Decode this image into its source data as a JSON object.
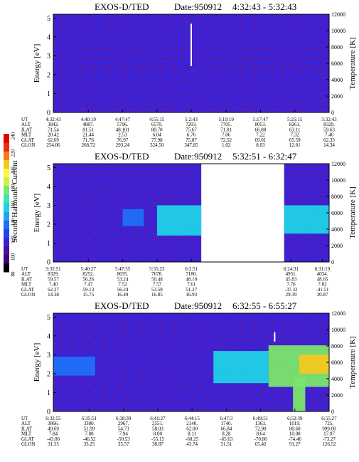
{
  "colorbar": {
    "label": "Second Harmonic Current",
    "ticks": [
      "80",
      "100",
      "120",
      "140",
      "160",
      "180",
      "200",
      "220",
      "240"
    ],
    "colors": [
      "#000000",
      "#40007a",
      "#4b0f9a",
      "#3a22d8",
      "#1e44f2",
      "#1e70f7",
      "#23a0f8",
      "#1fd2e6",
      "#33e8b8",
      "#7ae66c",
      "#ccf040",
      "#f8f83a",
      "#f4c820",
      "#f47a10",
      "#ee2a0a",
      "#e00000"
    ]
  },
  "panels": [
    {
      "title": "EXOS-D/TED",
      "date_label": "Date:950912",
      "time_range": "4:32:43 - 5:32:43",
      "ylabel": "Energy [eV]",
      "y2label": "Temperature [K]",
      "yticks": [
        "0",
        "1",
        "2",
        "3",
        "4",
        "5"
      ],
      "y2ticks": [
        "0",
        "2000",
        "4000",
        "6000",
        "8000",
        "10000",
        "12000"
      ],
      "row_labels": [
        "UT",
        "ALT",
        "ILAT",
        "MLT",
        "GLAT",
        "GLON"
      ],
      "columns": [
        [
          "4:32:43",
          "3842.",
          "71.54",
          "20.42",
          "62.69",
          "254.06"
        ],
        [
          "4:40:19",
          "4887.",
          "81.51",
          "21.44",
          "71.76",
          "268.72"
        ],
        [
          "4:47:47",
          "5796.",
          "48.101",
          "2.53",
          "76.97",
          "293.24"
        ],
        [
          "4:55:15",
          "6570.",
          "80.70",
          "6.04",
          "77.98",
          "324.50"
        ],
        [
          "5:2:43",
          "7203.",
          "75.67",
          "6.76",
          "75.87",
          "347.85"
        ],
        [
          "5:10:19",
          "7705.",
          "71.01",
          "7.06",
          "72.52",
          "1.02"
        ],
        [
          "5:17:47",
          "8053.",
          "66.88",
          "7.22",
          "69.01",
          "8.03"
        ],
        [
          "5:25:15",
          "8261.",
          "63.11",
          "7.32",
          "65.59",
          "12.01"
        ],
        [
          "5:32:43",
          "8329.",
          "59.63",
          "7.40",
          "62.33",
          "14.34"
        ]
      ]
    },
    {
      "title": "EXOS-D/TED",
      "date_label": "Date:950912",
      "time_range": "5:32:51 - 6:32:47",
      "ylabel": "Energy [eV]",
      "y2label": "Temperature [K]",
      "yticks": [
        "0",
        "1",
        "2",
        "3",
        "4",
        "5"
      ],
      "y2ticks": [
        "0",
        "2000",
        "4000",
        "6000",
        "8000",
        "10000",
        "12000"
      ],
      "row_labels": [
        "UT",
        "ALT",
        "ILAT",
        "MLT",
        "GLAT",
        "GLON"
      ],
      "columns": [
        [
          "5:32:51",
          "8329.",
          "59.57",
          "7.40",
          "62.27",
          "14.38"
        ],
        [
          "5:40:27",
          "8252.",
          "56.26",
          "7.47",
          "59.13",
          "15.75"
        ],
        [
          "5:47:55",
          "8035.",
          "53.24",
          "7.52",
          "56.24",
          "16.49"
        ],
        [
          "5:55:23",
          "7678.",
          "50.48",
          "7.57",
          "53.58",
          "16.85"
        ],
        [
          "6:2:51",
          "7180.",
          "48.10",
          "7.61",
          "51.27",
          "16.93"
        ],
        [
          "6:24:31",
          "4951.",
          "45.83",
          "7.76",
          "-37.32",
          "29.39"
        ],
        [
          "6:31:19",
          "4034.",
          "48.65",
          "7.82",
          "-41.51",
          "30.87"
        ]
      ]
    },
    {
      "title": "EXOS-D/TED",
      "date_label": "Date:950912",
      "time_range": "6:32:55 - 6:55:27",
      "ylabel": "Energy [eV]",
      "y2label": "Temperature [K]",
      "yticks": [
        "0",
        "1",
        "2",
        "3",
        "4",
        "5"
      ],
      "y2ticks": [
        "0",
        "2000",
        "4000",
        "6000",
        "8000",
        "10000",
        "12000"
      ],
      "row_labels": [
        "UT",
        "ALT",
        "ILAT",
        "MLT",
        "GLAT",
        "GLON"
      ],
      "columns": [
        [
          "6:32:55",
          "3866.",
          "49.69",
          "7.84",
          "-43.06",
          "31.55"
        ],
        [
          "6:35:51",
          "3380.",
          "51.99",
          "7.88",
          "-46.52",
          "33.25"
        ],
        [
          "6:38:39",
          "2967.",
          "54.73",
          "7.94",
          "-50.53",
          "35.57"
        ],
        [
          "6:41:27",
          "2551.",
          "58.03",
          "8.00",
          "-55.15",
          "38.87"
        ],
        [
          "6:44:15",
          "2140.",
          "62.00",
          "8.11",
          "-60.25",
          "43.74"
        ],
        [
          "6:47:3",
          "1740.",
          "66.84",
          "8.28",
          "-65.63",
          "51.51"
        ],
        [
          "6:49:51",
          "1363.",
          "72.90",
          "8.64",
          "-70.86",
          "65.42"
        ],
        [
          "6:52:39",
          "1019.",
          "80.60",
          "10.08",
          "-74.46",
          "91.27"
        ],
        [
          "6:55:27",
          "725.",
          "999.00",
          "17.07",
          "-73.27",
          "126.52"
        ]
      ]
    }
  ],
  "chart_data": [
    {
      "type": "heatmap",
      "title": "EXOS-D/TED  Date:950912  4:32:43 - 5:32:43",
      "xlabel": "UT",
      "ylabel": "Energy [eV]",
      "y2label": "Temperature [K]",
      "ylim": [
        0,
        5.2
      ],
      "y2lim": [
        0,
        12000
      ],
      "x_ticks": [
        "4:32:43",
        "4:40:19",
        "4:47:47",
        "4:55:15",
        "5:2:43",
        "5:10:19",
        "5:17:47",
        "5:25:15",
        "5:32:43"
      ],
      "background_level": 112,
      "features": [
        {
          "kind": "data_gap_line",
          "time": "5:2:43",
          "energy_range": [
            2.45,
            4.7
          ]
        }
      ]
    },
    {
      "type": "heatmap",
      "title": "EXOS-D/TED  Date:950912  5:32:51 - 6:32:47",
      "xlabel": "UT",
      "ylabel": "Energy [eV]",
      "y2label": "Temperature [K]",
      "ylim": [
        0,
        5.2
      ],
      "y2lim": [
        0,
        12000
      ],
      "x_ticks": [
        "5:32:51",
        "5:40:27",
        "5:47:55",
        "5:55:23",
        "6:2:51",
        "6:24:31",
        "6:31:19"
      ],
      "background_level": 112,
      "features": [
        {
          "kind": "band",
          "time_range": [
            "5:47:55",
            "5:52:30"
          ],
          "energy_range": [
            1.9,
            2.8
          ],
          "level": 138
        },
        {
          "kind": "band",
          "time_range": [
            "5:55:23",
            "6:5:00"
          ],
          "energy_range": [
            1.4,
            3.0
          ],
          "level": 152
        },
        {
          "kind": "no_data",
          "time_range": [
            "6:5:00",
            "6:23:00"
          ]
        },
        {
          "kind": "band",
          "time_range": [
            "6:23:00",
            "6:32:47"
          ],
          "energy_range": [
            1.5,
            3.0
          ],
          "level": 155
        }
      ]
    },
    {
      "type": "heatmap",
      "title": "EXOS-D/TED  Date:950912  6:32:55 - 6:55:27",
      "xlabel": "UT",
      "ylabel": "Energy [eV]",
      "y2label": "Temperature [K]",
      "ylim": [
        0,
        5.2
      ],
      "y2lim": [
        0,
        12000
      ],
      "x_ticks": [
        "6:32:55",
        "6:35:51",
        "6:38:39",
        "6:41:27",
        "6:44:15",
        "6:47:3",
        "6:49:51",
        "6:52:39",
        "6:55:27"
      ],
      "background_level": 112,
      "features": [
        {
          "kind": "band",
          "time_range": [
            "6:32:55",
            "6:36:20"
          ],
          "energy_range": [
            1.9,
            2.9
          ],
          "level": 132
        },
        {
          "kind": "band",
          "time_range": [
            "6:46:00",
            "6:50:30"
          ],
          "energy_range": [
            1.5,
            3.2
          ],
          "level": 158
        },
        {
          "kind": "band",
          "time_range": [
            "6:50:30",
            "6:55:27"
          ],
          "energy_range": [
            1.3,
            3.5
          ],
          "level": 178
        },
        {
          "kind": "band",
          "time_range": [
            "6:53:00",
            "6:55:27"
          ],
          "energy_range": [
            2.0,
            3.0
          ],
          "level": 205
        },
        {
          "kind": "column",
          "time_range": [
            "6:52:30",
            "6:53:30"
          ],
          "energy_range": [
            0.0,
            1.8
          ],
          "level": 170
        },
        {
          "kind": "data_gap_line",
          "time": "6:51:00",
          "energy_range": [
            3.7,
            4.2
          ]
        }
      ]
    }
  ]
}
